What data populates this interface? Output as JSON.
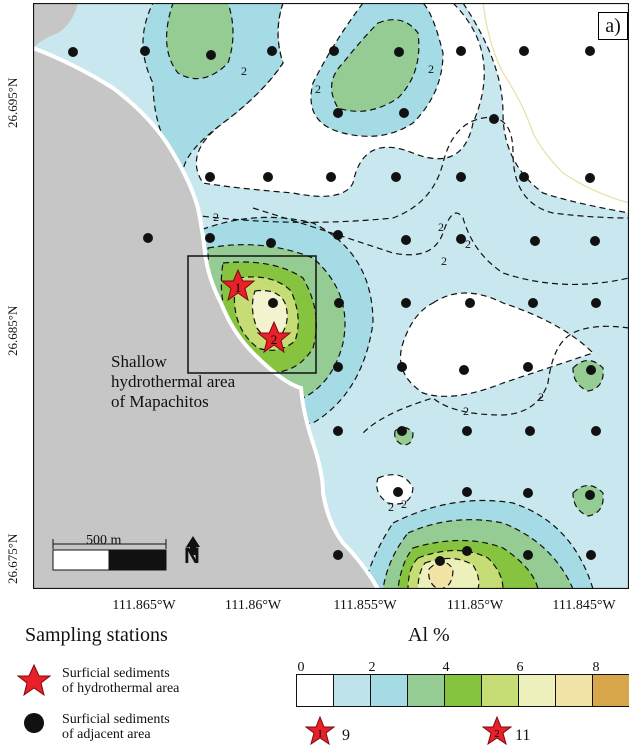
{
  "map": {
    "panel_label": "a)",
    "lat_ticks": [
      "26.695°N",
      "26.685°N",
      "26.675°N"
    ],
    "lon_ticks": [
      "111.865°W",
      "111.86°W",
      "111.855°W",
      "111.85°W",
      "111.845°W"
    ],
    "contour_labels": [
      "2",
      "2",
      "2",
      "2",
      "2",
      "2",
      "2",
      "2",
      "2",
      "2",
      "2"
    ],
    "stars": [
      {
        "label": "1"
      },
      {
        "label": "2"
      }
    ],
    "area_label": [
      "Shallow",
      "hydrothermal area",
      "of Mapachitos"
    ],
    "scale_label": "500 m",
    "north_label": "N",
    "land_color": "#c6c6c6"
  },
  "legend": {
    "stations_title": "Sampling stations",
    "star_label": [
      "Surficial sediments",
      "of hydrothermal area"
    ],
    "dot_label": [
      "Surficial sediments",
      "of adjacent area"
    ],
    "al_title": "Al  %",
    "bar_ticks": [
      "0",
      "2",
      "4",
      "6",
      "8"
    ],
    "bar_colors": [
      "#ffffff",
      "#bfe3ea",
      "#a5dbe4",
      "#95cc94",
      "#86c440",
      "#c5dd74",
      "#eef0bc",
      "#f2e4a7",
      "#d8a64a"
    ],
    "star_values": [
      {
        "label": "1",
        "value": "9"
      },
      {
        "label": "2",
        "value": "11"
      }
    ]
  }
}
